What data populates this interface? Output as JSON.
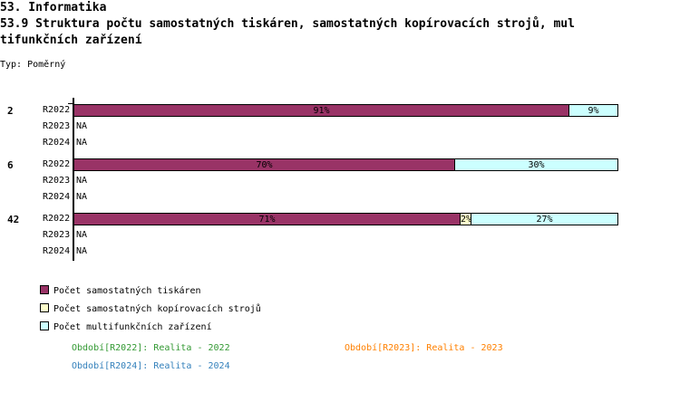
{
  "header": {
    "section": "53. Informatika",
    "title_line1": "53.9 Struktura počtu samostatných tiskáren, samostatných kopírovacích strojů, mul",
    "title_line2": "tifunkčních zařízení",
    "type_label": "Typ: Poměrný"
  },
  "chart_data": {
    "type": "bar",
    "orientation": "horizontal",
    "stacked": true,
    "normalized": true,
    "xlim": [
      0,
      100
    ],
    "series": [
      {
        "name": "Počet samostatných tiskáren",
        "color": "#993366"
      },
      {
        "name": "Počet samostatných kopírovacích strojů",
        "color": "#ffffcc"
      },
      {
        "name": "Počet multifunkčních zařízení",
        "color": "#ccffff"
      }
    ],
    "groups": [
      {
        "label": "2",
        "rows": [
          {
            "period": "R2022",
            "values": [
              91,
              0,
              9
            ],
            "labels": [
              "91%",
              "",
              "9%"
            ]
          },
          {
            "period": "R2023",
            "na": "NA"
          },
          {
            "period": "R2024",
            "na": "NA"
          }
        ]
      },
      {
        "label": "6",
        "rows": [
          {
            "period": "R2022",
            "values": [
              70,
              0,
              30
            ],
            "labels": [
              "70%",
              "",
              "30%"
            ]
          },
          {
            "period": "R2023",
            "na": "NA"
          },
          {
            "period": "R2024",
            "na": "NA"
          }
        ]
      },
      {
        "label": "42",
        "rows": [
          {
            "period": "R2022",
            "values": [
              71,
              2,
              27
            ],
            "labels": [
              "71%",
              "2%",
              "27%"
            ]
          },
          {
            "period": "R2023",
            "na": "NA"
          },
          {
            "period": "R2024",
            "na": "NA"
          }
        ]
      }
    ],
    "legend_placement": "bottom-left"
  },
  "periods": [
    {
      "text": "Období[R2022]: Realita - 2022",
      "color": "#339933"
    },
    {
      "text": "Období[R2023]: Realita - 2023",
      "color": "#ff8000"
    },
    {
      "text": "Období[R2024]: Realita - 2024",
      "color": "#3380bb"
    }
  ]
}
